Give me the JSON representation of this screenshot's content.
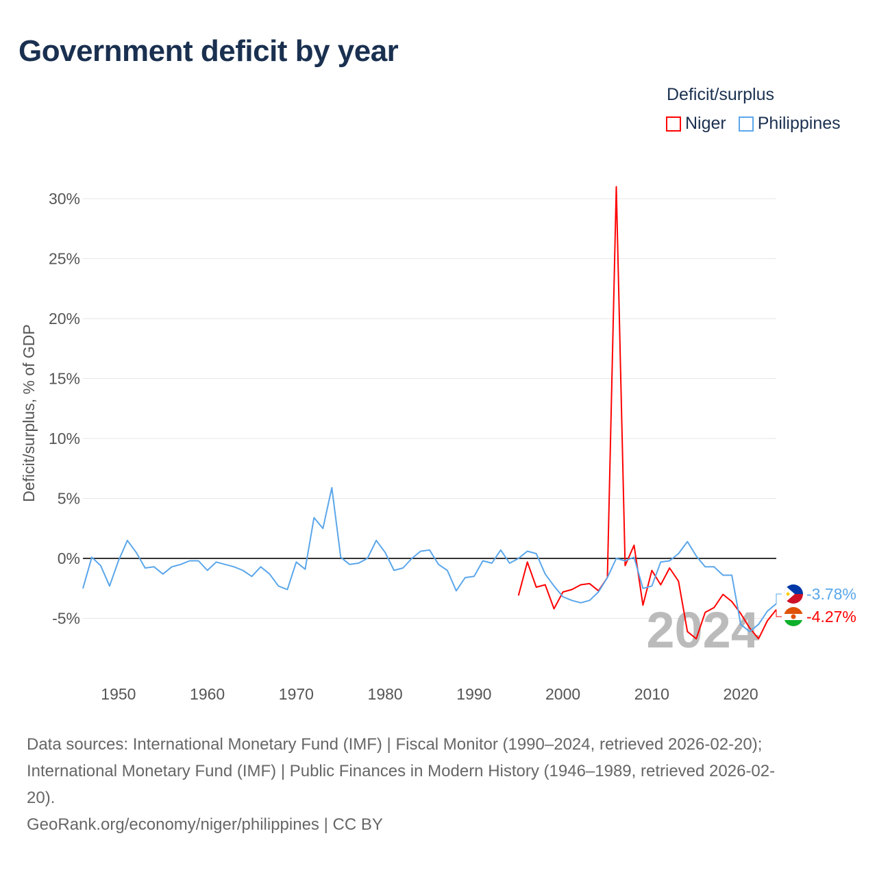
{
  "title": "Government deficit by year",
  "legend": {
    "title": "Deficit/surplus",
    "items": [
      {
        "name": "Niger",
        "color": "#ff0000"
      },
      {
        "name": "Philippines",
        "color": "#5aa6ea"
      }
    ]
  },
  "sources": {
    "line1": "Data sources: International Monetary Fund (IMF) | Fiscal Monitor (1990–2024, retrieved 2026-02-20);",
    "line2": "International Monetary Fund (IMF) | Public Finances in Modern History (1946–1989, retrieved 2026-02-",
    "line3": "20).",
    "line4": "GeoRank.org/economy/niger/philippines | CC BY"
  },
  "chart_data": {
    "type": "line",
    "title": "Government deficit by year",
    "ylabel": "Deficit/surplus, % of GDP",
    "xlabel": "",
    "xlim": [
      1946,
      2024
    ],
    "ylim": [
      -10,
      31
    ],
    "yticks": [
      -5,
      0,
      5,
      10,
      15,
      20,
      25,
      30
    ],
    "ytick_labels": [
      "-5%",
      "0%",
      "5%",
      "10%",
      "15%",
      "20%",
      "25%",
      "30%"
    ],
    "xticks": [
      1950,
      1960,
      1970,
      1980,
      1990,
      2000,
      2010,
      2020
    ],
    "xtick_labels": [
      "1950",
      "1960",
      "1970",
      "1980",
      "1990",
      "2000",
      "2010",
      "2020"
    ],
    "year_watermark": "2024",
    "series": [
      {
        "name": "Philippines",
        "color": "#5aa6ea",
        "start_year": 1946,
        "end_label": "-3.78%",
        "values": [
          -2.5,
          0.1,
          -0.6,
          -2.3,
          -0.2,
          1.5,
          0.5,
          -0.8,
          -0.7,
          -1.3,
          -0.7,
          -0.5,
          -0.2,
          -0.2,
          -1.0,
          -0.3,
          -0.5,
          -0.7,
          -1.0,
          -1.5,
          -0.7,
          -1.3,
          -2.3,
          -2.6,
          -0.3,
          -0.9,
          3.4,
          2.5,
          5.9,
          0.1,
          -0.5,
          -0.4,
          0.0,
          1.5,
          0.5,
          -1.0,
          -0.8,
          0.0,
          0.6,
          0.7,
          -0.5,
          -1.0,
          -2.7,
          -1.6,
          -1.5,
          -0.2,
          -0.4,
          0.7,
          -0.4,
          0.0,
          0.6,
          0.4,
          -1.3,
          -2.3,
          -3.2,
          -3.5,
          -3.7,
          -3.5,
          -2.8,
          -1.6,
          0.0,
          -0.2,
          0.1,
          -2.5,
          -2.3,
          -0.3,
          -0.2,
          0.4,
          1.4,
          0.2,
          -0.7,
          -0.7,
          -1.4,
          -1.4,
          -5.5,
          -6.1,
          -5.5,
          -4.4,
          -3.78
        ]
      },
      {
        "name": "Niger",
        "color": "#ff0000",
        "start_year": 1995,
        "end_label": "-4.27%",
        "values": [
          -3.1,
          -0.3,
          -2.4,
          -2.2,
          -4.2,
          -2.8,
          -2.6,
          -2.2,
          -2.1,
          -2.7,
          -1.6,
          31.0,
          -0.6,
          1.1,
          -3.9,
          -1.0,
          -2.2,
          -0.8,
          -1.9,
          -6.1,
          -6.7,
          -4.5,
          -4.1,
          -3.0,
          -3.6,
          -4.6,
          -5.8,
          -6.7,
          -5.2,
          -4.27
        ]
      }
    ]
  }
}
